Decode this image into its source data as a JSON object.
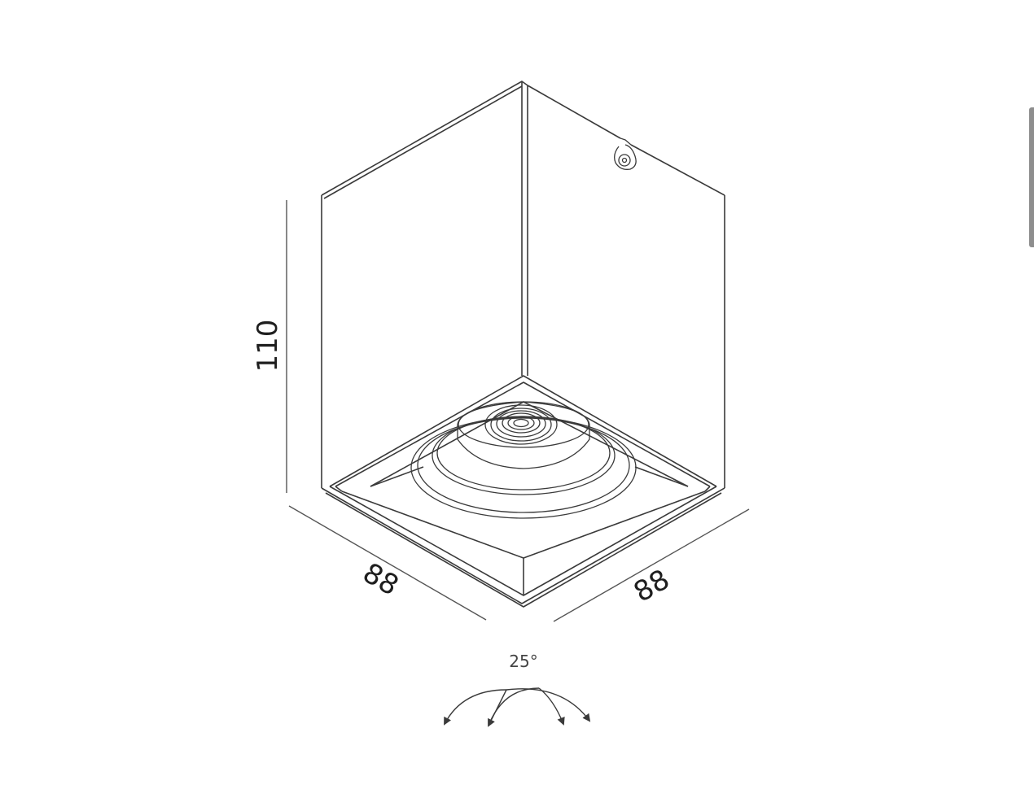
{
  "drawing": {
    "dimensions": {
      "height": "110",
      "width_left": "88",
      "width_right": "88"
    },
    "tilt_angle": "25°",
    "colors": {
      "line": "#3a3a3a",
      "dimension_line": "#555555",
      "background": "#ffffff"
    }
  },
  "icons": {
    "tilt_arrows": "double-curved-arrow-icon",
    "mounting_screw": "screw-hole-icon"
  }
}
